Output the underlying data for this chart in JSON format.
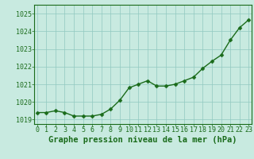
{
  "x": [
    0,
    1,
    2,
    3,
    4,
    5,
    6,
    7,
    8,
    9,
    10,
    11,
    12,
    13,
    14,
    15,
    16,
    17,
    18,
    19,
    20,
    21,
    22,
    23
  ],
  "y": [
    1019.4,
    1019.4,
    1019.5,
    1019.4,
    1019.2,
    1019.2,
    1019.2,
    1019.3,
    1019.6,
    1020.1,
    1020.8,
    1021.0,
    1021.2,
    1020.9,
    1020.9,
    1021.0,
    1021.2,
    1021.4,
    1021.9,
    1022.3,
    1022.65,
    1023.5,
    1024.2,
    1024.65
  ],
  "line_color": "#1a6b1a",
  "marker_color": "#1a6b1a",
  "bg_color": "#c8eae0",
  "grid_color": "#90c8c0",
  "xlabel": "Graphe pression niveau de la mer (hPa)",
  "xlabel_color": "#1a6b1a",
  "ylabel_ticks": [
    1019,
    1020,
    1021,
    1022,
    1023,
    1024,
    1025
  ],
  "xlim": [
    -0.3,
    23.3
  ],
  "ylim": [
    1018.75,
    1025.5
  ],
  "tick_color": "#1a6b1a",
  "spine_color": "#1a6b1a",
  "marker_size": 2.5,
  "line_width": 1.0,
  "xlabel_fontsize": 7.5,
  "tick_fontsize": 6.0
}
